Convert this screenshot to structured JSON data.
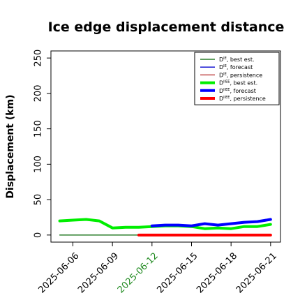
{
  "chart_data": {
    "type": "line",
    "title": "Ice edge displacement distance",
    "xlabel": "",
    "ylabel": "Displacement (km)",
    "ylim": [
      -10,
      260
    ],
    "xlim": [
      "2025-06-04T08:00",
      "2025-06-21T18:00"
    ],
    "yticks": [
      0,
      50,
      100,
      150,
      200,
      250
    ],
    "xticks": [
      {
        "label": "2025-06-06",
        "x": "2025-06-06",
        "color": "#000000"
      },
      {
        "label": "2025-06-09",
        "x": "2025-06-09",
        "color": "#000000"
      },
      {
        "label": "2025-06-12",
        "x": "2025-06-12",
        "color": "#228b22"
      },
      {
        "label": "2025-06-15",
        "x": "2025-06-15",
        "color": "#000000"
      },
      {
        "label": "2025-06-18",
        "x": "2025-06-18",
        "color": "#000000"
      },
      {
        "label": "2025-06-21",
        "x": "2025-06-21",
        "color": "#000000"
      }
    ],
    "grid": false,
    "legend_position": "top-right",
    "series": [
      {
        "name": "D",
        "sup": "IE",
        "suffix": ", best est.",
        "color": "#006400",
        "width": 1.3,
        "x": [
          "2025-06-05",
          "2025-06-06",
          "2025-06-07",
          "2025-06-08",
          "2025-06-09",
          "2025-06-10",
          "2025-06-11"
        ],
        "y": [
          0,
          0,
          0,
          0,
          0,
          0,
          0
        ]
      },
      {
        "name": "D",
        "sup": "IE",
        "suffix": ", forecast",
        "color": "#0000cd",
        "width": 1.3,
        "x": [],
        "y": []
      },
      {
        "name": "D",
        "sup": "IE",
        "suffix": ", persistence",
        "color": "#b22222",
        "width": 1.3,
        "x": [],
        "y": []
      },
      {
        "name": "D",
        "sup": "IIEE",
        "suffix": ", best est.",
        "color": "#00ee00",
        "width": 4,
        "x": [
          "2025-06-05",
          "2025-06-06",
          "2025-06-07",
          "2025-06-08",
          "2025-06-09",
          "2025-06-10",
          "2025-06-11",
          "2025-06-12",
          "2025-06-13",
          "2025-06-14",
          "2025-06-15",
          "2025-06-16",
          "2025-06-17",
          "2025-06-18",
          "2025-06-19",
          "2025-06-20",
          "2025-06-21"
        ],
        "y": [
          20,
          21,
          22,
          20,
          10,
          11,
          11,
          12,
          13,
          13,
          12,
          9,
          10,
          9,
          12,
          12,
          15
        ]
      },
      {
        "name": "D",
        "sup": "IIEE",
        "suffix": ", forecast",
        "color": "#0000ff",
        "width": 4,
        "x": [
          "2025-06-12",
          "2025-06-13",
          "2025-06-14",
          "2025-06-15",
          "2025-06-16",
          "2025-06-17",
          "2025-06-18",
          "2025-06-19",
          "2025-06-20",
          "2025-06-21"
        ],
        "y": [
          13,
          14,
          14,
          13,
          16,
          14,
          16,
          18,
          19,
          22
        ]
      },
      {
        "name": "D",
        "sup": "IIEE",
        "suffix": ", persistence",
        "color": "#ff0000",
        "width": 4,
        "x": [
          "2025-06-11",
          "2025-06-12",
          "2025-06-13",
          "2025-06-14",
          "2025-06-15",
          "2025-06-16",
          "2025-06-17",
          "2025-06-18",
          "2025-06-19",
          "2025-06-20",
          "2025-06-21"
        ],
        "y": [
          0,
          0,
          0,
          0,
          0,
          0,
          0,
          0,
          0,
          0,
          0
        ]
      }
    ]
  }
}
